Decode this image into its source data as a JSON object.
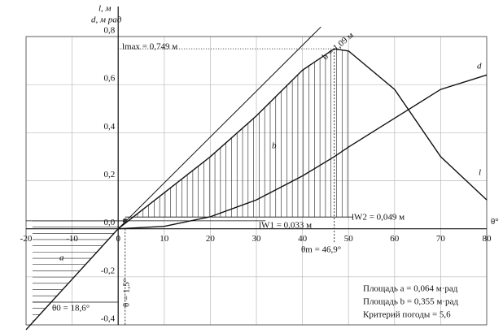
{
  "chart_data": {
    "type": "line",
    "y_label": "l, м",
    "y2_label": "d, м рад",
    "x_label": "θ°",
    "x": [
      -20,
      -10,
      0,
      10,
      20,
      30,
      40,
      46.9,
      50,
      60,
      70,
      80
    ],
    "series": [
      {
        "name": "l",
        "color": "#111",
        "values": [
          -0.42,
          -0.21,
          0,
          0.15,
          0.3,
          0.47,
          0.66,
          0.749,
          0.74,
          0.58,
          0.3,
          0.12
        ]
      },
      {
        "name": "d",
        "color": "#111",
        "values": [
          null,
          null,
          0,
          0.01,
          0.05,
          0.12,
          0.22,
          0.3,
          0.34,
          0.46,
          0.58,
          0.64
        ]
      }
    ],
    "xlim": [
      -20,
      80
    ],
    "ylim": [
      -0.4,
      0.8
    ],
    "xticks": [
      -20,
      -10,
      0,
      10,
      20,
      30,
      40,
      50,
      60,
      70,
      80
    ],
    "yticks": [
      {
        "value": -0.4,
        "label": "-0,4"
      },
      {
        "value": -0.2,
        "label": "-0,2"
      },
      {
        "value": 0,
        "label": "0,0"
      },
      {
        "value": 0.2,
        "label": "0,2"
      },
      {
        "value": 0.4,
        "label": "0,4"
      },
      {
        "value": 0.6,
        "label": "0,6"
      },
      {
        "value": 0.8,
        "label": "0,8"
      }
    ],
    "grid": true,
    "annotations": [
      "lmax = 0,749 м",
      "b = 1,09 м",
      "b",
      "a",
      "lW1 = 0,033 м",
      "lW2 = 0,049 м",
      "θm = 46,9°",
      "θ0 = 18,6°",
      "θ = 1,5°",
      "Площадь a = 0,064 м·рад",
      "Площадь b = 0,355 м·рад",
      "Критерий погоды = 5,6"
    ]
  }
}
